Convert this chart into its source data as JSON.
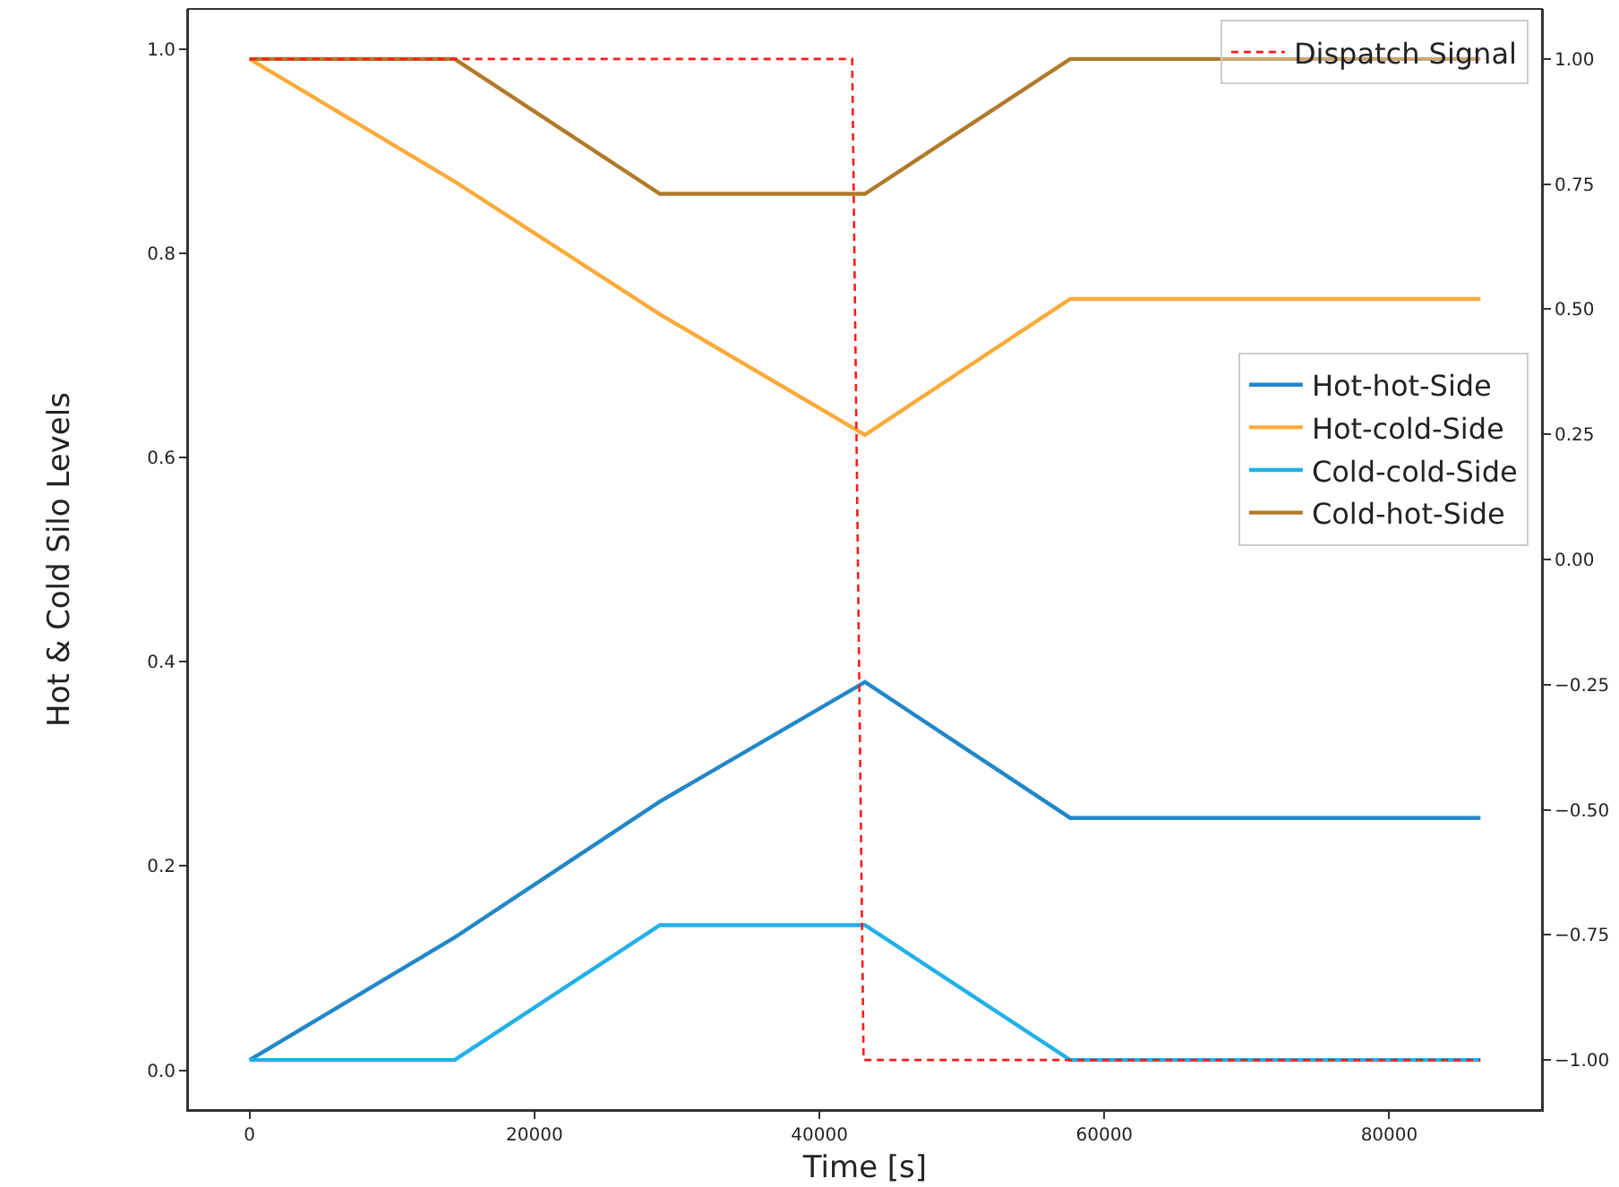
{
  "chart_data": {
    "type": "line",
    "xlabel": "Time [s]",
    "ylabel": "Hot & Cold Silo Levels",
    "x": [
      0,
      14400,
      28800,
      43200,
      57600,
      86400
    ],
    "series": [
      {
        "name": "Hot-hot-Side",
        "color": "#2287c8",
        "values": [
          0.01,
          0.13,
          0.263,
          0.38,
          0.247,
          0.247
        ]
      },
      {
        "name": "Hot-cold-Side",
        "color": "#fbab3a",
        "values": [
          0.99,
          0.87,
          0.74,
          0.622,
          0.755,
          0.755
        ]
      },
      {
        "name": "Cold-cold-Side",
        "color": "#22b0e8",
        "values": [
          0.01,
          0.01,
          0.142,
          0.142,
          0.01,
          0.01
        ]
      },
      {
        "name": "Cold-hot-Side",
        "color": "#b07a2a",
        "values": [
          0.99,
          0.99,
          0.858,
          0.858,
          0.99,
          0.99
        ]
      },
      {
        "name": "Dispatch Signal",
        "color": "#ff1a1a",
        "axis": "y2",
        "line_style": "dashed",
        "x": [
          0,
          42300,
          43100,
          86400
        ],
        "values": [
          1,
          1,
          -1,
          -1
        ]
      }
    ],
    "xlim": [
      -4320,
      90720
    ],
    "xticks": [
      0,
      20000,
      40000,
      60000,
      80000
    ],
    "ylim": [
      -0.039,
      1.039
    ],
    "yticks": [
      {
        "value": 0,
        "label": "0.0"
      },
      {
        "value": 0.2,
        "label": "0.2"
      },
      {
        "value": 0.4,
        "label": "0.4"
      },
      {
        "value": 0.6,
        "label": "0.6"
      },
      {
        "value": 0.8,
        "label": "0.8"
      },
      {
        "value": 1,
        "label": "1.0"
      }
    ],
    "y2lim": [
      -1.1,
      1.1
    ],
    "y2ticks": [
      {
        "value": -1,
        "label": "−1.00"
      },
      {
        "value": -0.75,
        "label": "−0.75"
      },
      {
        "value": -0.5,
        "label": "−0.50"
      },
      {
        "value": -0.25,
        "label": "−0.25"
      },
      {
        "value": 0,
        "label": "0.00"
      },
      {
        "value": 0.25,
        "label": "0.25"
      },
      {
        "value": 0.5,
        "label": "0.50"
      },
      {
        "value": 0.75,
        "label": "0.75"
      },
      {
        "value": 1,
        "label": "1.00"
      }
    ],
    "grid": false,
    "legend": "right",
    "marker": "none",
    "line_style": "solid"
  }
}
